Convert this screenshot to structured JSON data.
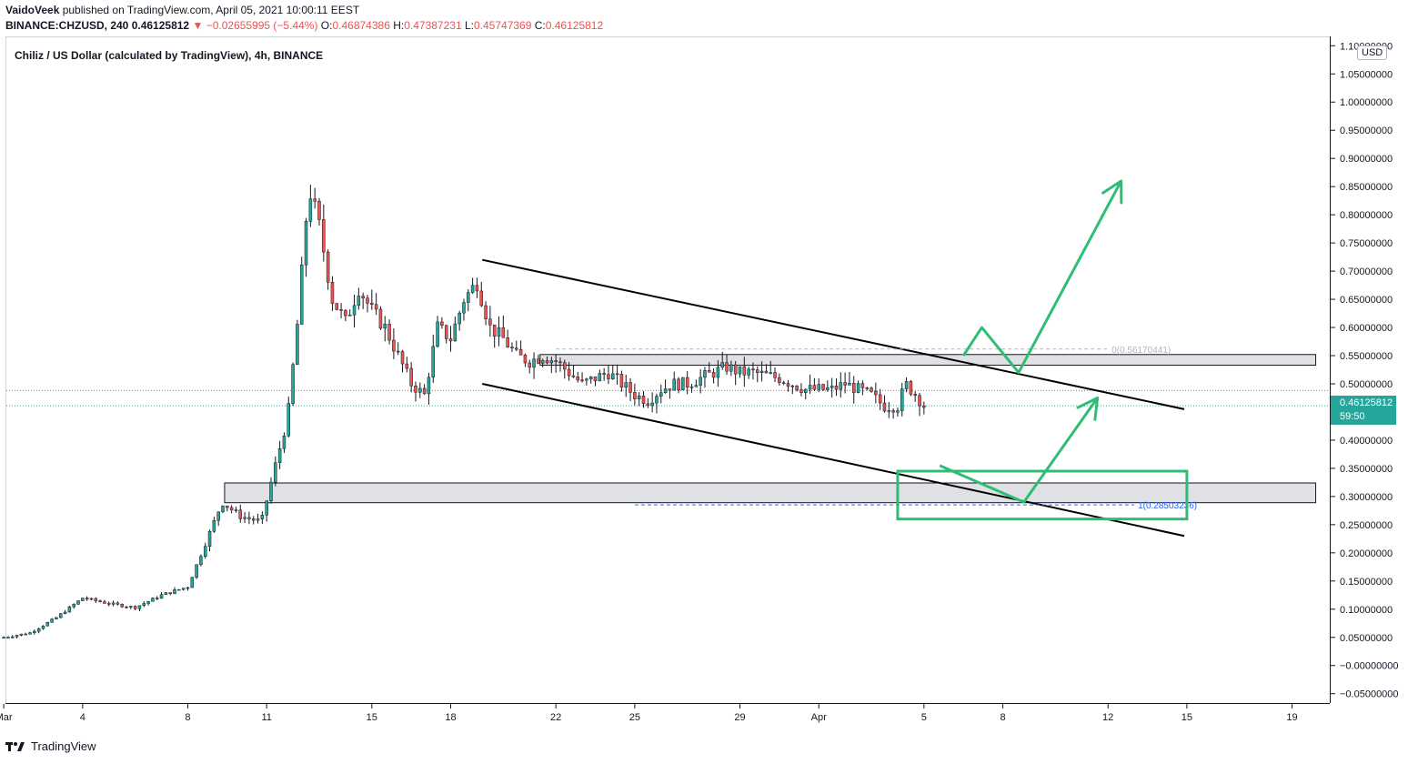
{
  "header": {
    "author": "VaidoVeek",
    "published_text": " published on TradingView.com, April 05, 2021 10:00:11 EEST",
    "symbol_line": "BINANCE:CHZUSD, 240",
    "last_price": "0.46125812",
    "change_arrow": "▼",
    "change": "−0.02655995 (−5.44%)",
    "o_label": "O:",
    "o_value": "0.46874386",
    "h_label": "H:",
    "h_value": "0.47387231",
    "l_label": "L:",
    "l_value": "0.45747369",
    "c_label": "C:",
    "c_value": "0.46125812"
  },
  "pair_title": "Chiliz / US Dollar (calculated by TradingView), 4h, BINANCE",
  "currency_badge": "USD",
  "last_price_box": {
    "price": "0.46125812",
    "countdown": "59:50"
  },
  "footer": {
    "brand": "TradingView"
  },
  "colors": {
    "up": "#26a69a",
    "down": "#ef5350",
    "annotation": "#2ebd75",
    "channel": "#000000",
    "zone": "#e0e1e4",
    "fib": "#2962ff"
  },
  "chart_data": {
    "type": "candlestick",
    "y_ticks": [
      "1.10000000",
      "1.05000000",
      "1.00000000",
      "0.95000000",
      "0.90000000",
      "0.85000000",
      "0.80000000",
      "0.75000000",
      "0.70000000",
      "0.65000000",
      "0.60000000",
      "0.55000000",
      "0.50000000",
      "0.45000000",
      "0.40000000",
      "0.35000000",
      "0.30000000",
      "0.25000000",
      "0.20000000",
      "0.15000000",
      "0.10000000",
      "0.05000000",
      "−0.00000000",
      "−0.05000000"
    ],
    "ylim": [
      -0.065,
      1.115
    ],
    "x_ticks": [
      {
        "label": "Mar",
        "day": 1
      },
      {
        "label": "4",
        "day": 4
      },
      {
        "label": "8",
        "day": 8
      },
      {
        "label": "11",
        "day": 11
      },
      {
        "label": "15",
        "day": 15
      },
      {
        "label": "18",
        "day": 18
      },
      {
        "label": "22",
        "day": 22
      },
      {
        "label": "25",
        "day": 25
      },
      {
        "label": "29",
        "day": 29
      },
      {
        "label": "Apr",
        "day": 32
      },
      {
        "label": "5",
        "day": 36
      },
      {
        "label": "8",
        "day": 39
      },
      {
        "label": "12",
        "day": 43
      },
      {
        "label": "15",
        "day": 46
      },
      {
        "label": "19",
        "day": 50
      }
    ],
    "xlim": [
      1.1,
      51.4
    ],
    "price_path": [
      [
        1,
        0.05
      ],
      [
        2,
        0.058
      ],
      [
        3,
        0.085
      ],
      [
        4,
        0.12
      ],
      [
        5,
        0.11
      ],
      [
        6,
        0.103
      ],
      [
        7,
        0.125
      ],
      [
        8,
        0.14
      ],
      [
        8.7,
        0.22
      ],
      [
        9.3,
        0.29
      ],
      [
        10,
        0.265
      ],
      [
        10.8,
        0.255
      ],
      [
        11.3,
        0.35
      ],
      [
        11.8,
        0.44
      ],
      [
        12.2,
        0.62
      ],
      [
        12.6,
        0.85
      ],
      [
        13,
        0.78
      ],
      [
        13.5,
        0.65
      ],
      [
        14,
        0.61
      ],
      [
        14.5,
        0.67
      ],
      [
        15,
        0.63
      ],
      [
        15.5,
        0.6
      ],
      [
        16,
        0.55
      ],
      [
        16.5,
        0.5
      ],
      [
        17,
        0.48
      ],
      [
        17.5,
        0.6
      ],
      [
        18,
        0.58
      ],
      [
        18.5,
        0.65
      ],
      [
        19,
        0.68
      ],
      [
        19.5,
        0.6
      ],
      [
        20,
        0.58
      ],
      [
        20.5,
        0.55
      ],
      [
        21,
        0.54
      ],
      [
        21.5,
        0.55
      ],
      [
        22,
        0.54
      ],
      [
        22.5,
        0.52
      ],
      [
        23,
        0.5
      ],
      [
        23.5,
        0.51
      ],
      [
        24,
        0.52
      ],
      [
        24.5,
        0.5
      ],
      [
        25,
        0.48
      ],
      [
        25.5,
        0.47
      ],
      [
        26,
        0.49
      ],
      [
        26.5,
        0.5
      ],
      [
        27,
        0.5
      ],
      [
        27.5,
        0.51
      ],
      [
        28,
        0.52
      ],
      [
        28.5,
        0.53
      ],
      [
        29,
        0.52
      ],
      [
        29.5,
        0.52
      ],
      [
        30,
        0.515
      ],
      [
        30.5,
        0.51
      ],
      [
        31,
        0.5
      ],
      [
        31.5,
        0.49
      ],
      [
        32,
        0.49
      ],
      [
        32.5,
        0.49
      ],
      [
        33,
        0.5
      ],
      [
        33.5,
        0.49
      ],
      [
        34,
        0.48
      ],
      [
        34.5,
        0.46
      ],
      [
        35,
        0.46
      ],
      [
        35.3,
        0.5
      ],
      [
        35.7,
        0.48
      ],
      [
        36,
        0.461
      ]
    ],
    "zones": [
      {
        "x": [
          21.4,
          50.9
        ],
        "y": [
          0.533,
          0.552
        ]
      },
      {
        "x": [
          9.4,
          50.9
        ],
        "y": [
          0.289,
          0.324
        ]
      }
    ],
    "channel": {
      "upper": [
        [
          19.2,
          0.72
        ],
        [
          45.9,
          0.455
        ]
      ],
      "lower": [
        [
          19.2,
          0.5
        ],
        [
          45.9,
          0.23
        ]
      ]
    },
    "fib": [
      {
        "label": "0(0.56170441)",
        "value": 0.5617,
        "x": [
          22,
          43
        ]
      },
      {
        "label": "1(0.28503236)",
        "value": 0.285,
        "x": [
          25,
          44
        ]
      }
    ],
    "annotation_box": {
      "x": [
        35,
        46
      ],
      "y": [
        0.26,
        0.345
      ]
    },
    "arrows": [
      {
        "points": [
          [
            37.5,
            0.55
          ],
          [
            38.2,
            0.6
          ],
          [
            39.6,
            0.52
          ],
          [
            43.5,
            0.86
          ]
        ]
      },
      {
        "points": [
          [
            36.6,
            0.355
          ],
          [
            39.8,
            0.29
          ],
          [
            42.6,
            0.475
          ]
        ]
      }
    ]
  }
}
